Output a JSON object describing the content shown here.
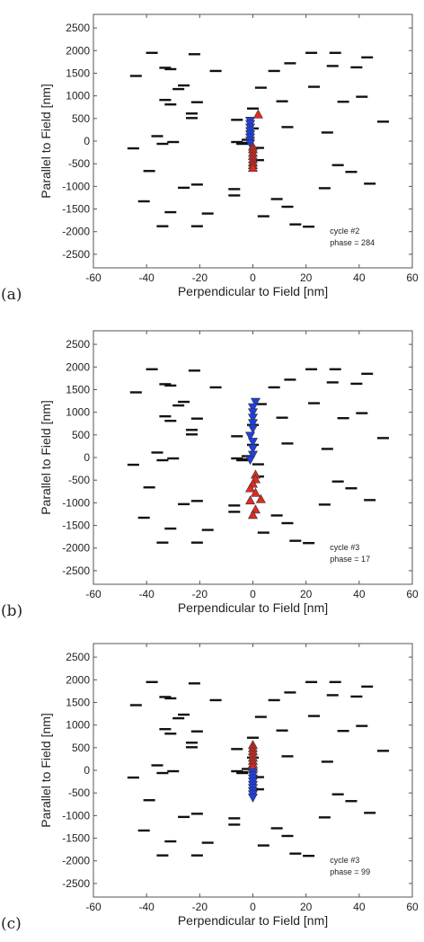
{
  "colors": {
    "frame": "#555555",
    "background_segments": "#111111",
    "down_markers": "#1f3fe0",
    "up_markers": "#e02a22",
    "marker_edge": "#333333"
  },
  "background_segment_half_width": 2.2,
  "background_segments": [
    [
      -38,
      1950
    ],
    [
      -22,
      1920
    ],
    [
      -33,
      1620
    ],
    [
      -31,
      1590
    ],
    [
      -14,
      1550
    ],
    [
      -44,
      1440
    ],
    [
      -26,
      1230
    ],
    [
      -28,
      1150
    ],
    [
      -33,
      910
    ],
    [
      -21,
      860
    ],
    [
      -31,
      810
    ],
    [
      -23,
      610
    ],
    [
      -23,
      510
    ],
    [
      -6,
      470
    ],
    [
      -36,
      110
    ],
    [
      -30,
      -20
    ],
    [
      -34,
      -60
    ],
    [
      -45,
      -160
    ],
    [
      -39,
      -660
    ],
    [
      -21,
      -960
    ],
    [
      -26,
      -1030
    ],
    [
      -41,
      -1330
    ],
    [
      -7,
      -1060
    ],
    [
      -7,
      -1200
    ],
    [
      -31,
      -1570
    ],
    [
      -17,
      -1600
    ],
    [
      -34,
      -1880
    ],
    [
      -21,
      -1880
    ],
    [
      2,
      -420
    ],
    [
      -6,
      -20
    ],
    [
      -4,
      -60
    ],
    [
      2,
      -150
    ],
    [
      -2,
      30
    ],
    [
      0,
      280
    ],
    [
      0,
      720
    ],
    [
      3,
      1180
    ],
    [
      8,
      1550
    ],
    [
      14,
      1720
    ],
    [
      22,
      1950
    ],
    [
      31,
      1950
    ],
    [
      30,
      1660
    ],
    [
      39,
      1630
    ],
    [
      43,
      1850
    ],
    [
      23,
      1200
    ],
    [
      34,
      870
    ],
    [
      41,
      980
    ],
    [
      11,
      880
    ],
    [
      13,
      310
    ],
    [
      28,
      190
    ],
    [
      49,
      430
    ],
    [
      32,
      -530
    ],
    [
      37,
      -680
    ],
    [
      44,
      -940
    ],
    [
      27,
      -1040
    ],
    [
      9,
      -1280
    ],
    [
      13,
      -1450
    ],
    [
      16,
      -1840
    ],
    [
      21,
      -1890
    ],
    [
      4,
      -1660
    ],
    [
      -4,
      -40
    ]
  ],
  "chart_data": [
    {
      "type": "scatter",
      "panel_label": "(a)",
      "xlabel": "Perpendicular to Field [nm]",
      "ylabel": "Parallel to Field [nm]",
      "xlim": [
        -60,
        60
      ],
      "ylim": [
        -2800,
        2800
      ],
      "x_ticks": [
        -60,
        -40,
        -20,
        0,
        20,
        40,
        60
      ],
      "y_ticks": [
        -2500,
        -2000,
        -1500,
        -1000,
        -500,
        0,
        500,
        1000,
        1500,
        2000,
        2500
      ],
      "grid": false,
      "annotation_lines": [
        "cycle #2",
        "phase = 284"
      ],
      "series": [
        {
          "marker": "triangle-down",
          "color": "#1f3fe0",
          "points": [
            [
              -1,
              450
            ],
            [
              -1,
              380
            ],
            [
              -1,
              300
            ],
            [
              -1,
              220
            ],
            [
              -1,
              150
            ],
            [
              -1,
              80
            ],
            [
              -1,
              10
            ],
            [
              -1,
              -50
            ]
          ]
        },
        {
          "marker": "triangle-up",
          "color": "#e02a22",
          "points": [
            [
              2,
              590
            ],
            [
              0,
              -120
            ],
            [
              0,
              -180
            ],
            [
              0,
              -260
            ],
            [
              0,
              -330
            ],
            [
              0,
              -400
            ],
            [
              0,
              -470
            ],
            [
              0,
              -530
            ],
            [
              0,
              -590
            ]
          ]
        }
      ]
    },
    {
      "type": "scatter",
      "panel_label": "(b)",
      "xlabel": "Perpendicular to Field [nm]",
      "ylabel": "Parallel to Field [nm]",
      "xlim": [
        -60,
        60
      ],
      "ylim": [
        -2800,
        2800
      ],
      "x_ticks": [
        -60,
        -40,
        -20,
        0,
        20,
        40,
        60
      ],
      "y_ticks": [
        -2500,
        -2000,
        -1500,
        -1000,
        -500,
        0,
        500,
        1000,
        1500,
        2000,
        2500
      ],
      "grid": false,
      "annotation_lines": [
        "cycle #3",
        "phase = 17"
      ],
      "series": [
        {
          "marker": "triangle-down",
          "color": "#1f3fe0",
          "points": [
            [
              1,
              1230
            ],
            [
              0,
              1110
            ],
            [
              0,
              1000
            ],
            [
              0,
              880
            ],
            [
              0,
              760
            ],
            [
              0,
              640
            ],
            [
              -1,
              480
            ],
            [
              0,
              350
            ],
            [
              0,
              200
            ],
            [
              0,
              60
            ],
            [
              -1,
              -50
            ]
          ]
        },
        {
          "marker": "triangle-up",
          "color": "#e02a22",
          "points": [
            [
              1,
              -380
            ],
            [
              1,
              -480
            ],
            [
              0,
              -580
            ],
            [
              -1,
              -680
            ],
            [
              1,
              -780
            ],
            [
              3,
              -920
            ],
            [
              -1,
              -950
            ],
            [
              1,
              -1150
            ],
            [
              0,
              -1270
            ]
          ]
        }
      ]
    },
    {
      "type": "scatter",
      "panel_label": "(c)",
      "xlabel": "Perpendicular to Field [nm]",
      "ylabel": "Parallel to Field [nm]",
      "xlim": [
        -60,
        60
      ],
      "ylim": [
        -2800,
        2800
      ],
      "x_ticks": [
        -60,
        -40,
        -20,
        0,
        20,
        40,
        60
      ],
      "y_ticks": [
        -2500,
        -2000,
        -1500,
        -1000,
        -500,
        0,
        500,
        1000,
        1500,
        2000,
        2500
      ],
      "grid": false,
      "annotation_lines": [
        "cycle #3",
        "phase = 99"
      ],
      "series": [
        {
          "marker": "triangle-up",
          "color": "#e02a22",
          "points": [
            [
              0,
              560
            ],
            [
              0,
              490
            ],
            [
              0,
              420
            ],
            [
              0,
              350
            ],
            [
              0,
              280
            ],
            [
              0,
              210
            ],
            [
              0,
              140
            ],
            [
              0,
              70
            ]
          ]
        },
        {
          "marker": "triangle-down",
          "color": "#1f3fe0",
          "points": [
            [
              0,
              -40
            ],
            [
              0,
              -110
            ],
            [
              0,
              -180
            ],
            [
              0,
              -250
            ],
            [
              0,
              -320
            ],
            [
              0,
              -390
            ],
            [
              0,
              -460
            ],
            [
              0,
              -530
            ],
            [
              0,
              -600
            ]
          ]
        }
      ]
    }
  ]
}
